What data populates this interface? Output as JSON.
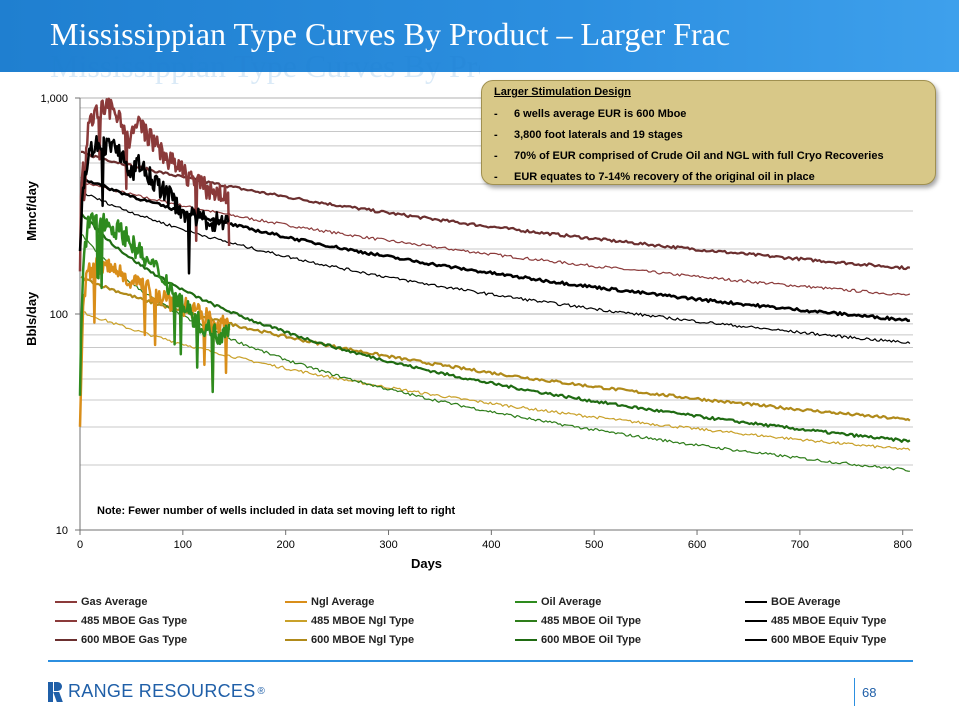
{
  "slide": {
    "title": "Mississippian Type Curves By Product – Larger Frac",
    "company": "RANGE RESOURCES",
    "company_mark": "®",
    "page_number": "68",
    "accent_color": "#2c8fe0"
  },
  "callout": {
    "title": "Larger Stimulation Design",
    "bullet_marker": "-",
    "items": [
      "6 wells average EUR is 600 Mboe",
      "3,800 foot laterals and 19 stages",
      "70% of EUR comprised of Crude Oil and NGL with full Cryo Recoveries",
      "EUR equates to 7-14% recovery of the original oil in place"
    ]
  },
  "chart_data": {
    "type": "line",
    "title": "",
    "xlabel": "Days",
    "ylabel_top": "Mmcf/day",
    "ylabel_bottom": "Bbls/day",
    "xlim": [
      0,
      810
    ],
    "ylim": [
      10,
      1000
    ],
    "yscale": "log",
    "x_ticks": [
      "0",
      "100",
      "200",
      "300",
      "400",
      "500",
      "600",
      "700",
      "800"
    ],
    "y_ticks": [
      "10",
      "100",
      "1,000"
    ],
    "note": "Note: Fewer number of wells included in data set moving left to right",
    "series": [
      {
        "name": "Gas Average",
        "color": "#8b3a3a",
        "width": 2.5,
        "kind": "noisy",
        "days": 145,
        "x": [
          0,
          3,
          8,
          12,
          20,
          30,
          40,
          48,
          55,
          62,
          70,
          80,
          90,
          100,
          110,
          120,
          130,
          145
        ],
        "y": [
          300,
          550,
          700,
          820,
          880,
          900,
          820,
          600,
          780,
          720,
          640,
          560,
          500,
          460,
          420,
          390,
          370,
          350
        ]
      },
      {
        "name": "485 MBOE Gas Type",
        "color": "#8b3a3a",
        "width": 1.2,
        "kind": "type",
        "qi": 410,
        "di": 0.00292,
        "b": 1.0
      },
      {
        "name": "600 MBOE Gas Type",
        "color": "#6b2f2f",
        "width": 2.2,
        "kind": "type",
        "qi": 560,
        "di": 0.00302,
        "b": 1.0
      },
      {
        "name": "Ngl Average",
        "color": "#d98e1a",
        "width": 2.5,
        "kind": "noisy",
        "days": 145,
        "x": [
          0,
          3,
          8,
          15,
          25,
          35,
          45,
          55,
          65,
          75,
          85,
          95,
          105,
          115,
          125,
          135,
          145
        ],
        "y": [
          30,
          120,
          155,
          170,
          165,
          160,
          150,
          140,
          130,
          125,
          118,
          112,
          108,
          100,
          95,
          90,
          88
        ]
      },
      {
        "name": "485 MBOE Ngl Type",
        "color": "#c9a12a",
        "width": 1.2,
        "kind": "type",
        "qi": 103,
        "di": 0.00418,
        "b": 1.0
      },
      {
        "name": "600 MBOE Ngl Type",
        "color": "#b08a1a",
        "width": 2.2,
        "kind": "type",
        "qi": 148,
        "di": 0.00442,
        "b": 1.0
      },
      {
        "name": "Oil Average",
        "color": "#2e8b1e",
        "width": 2.5,
        "kind": "noisy",
        "days": 145,
        "x": [
          0,
          3,
          8,
          15,
          25,
          35,
          45,
          55,
          65,
          75,
          85,
          95,
          105,
          115,
          125,
          135,
          145
        ],
        "y": [
          45,
          170,
          260,
          275,
          265,
          250,
          230,
          200,
          175,
          160,
          140,
          120,
          105,
          92,
          85,
          80,
          90
        ]
      },
      {
        "name": "485 MBOE Oil Type",
        "color": "#2e7d1a",
        "width": 1.2,
        "kind": "type",
        "qi": 240,
        "di": 0.0145,
        "b": 1.0
      },
      {
        "name": "600 MBOE Oil Type",
        "color": "#1f6b12",
        "width": 2.2,
        "kind": "type",
        "qi": 300,
        "di": 0.0132,
        "b": 1.0
      },
      {
        "name": "BOE Average",
        "color": "#000000",
        "width": 2.5,
        "kind": "noisy",
        "days": 145,
        "x": [
          0,
          3,
          8,
          12,
          20,
          30,
          40,
          48,
          55,
          62,
          70,
          80,
          90,
          100,
          110,
          120,
          130,
          145
        ],
        "y": [
          200,
          400,
          520,
          600,
          620,
          600,
          560,
          420,
          500,
          470,
          420,
          380,
          340,
          300,
          280,
          275,
          270,
          265
        ]
      },
      {
        "name": "485 MBOE Equiv Type",
        "color": "#000000",
        "width": 1.2,
        "kind": "type",
        "qi": 370,
        "di": 0.005,
        "b": 1.0
      },
      {
        "name": "600  MBOE Equiv Type",
        "color": "#000000",
        "width": 2.6,
        "kind": "type",
        "qi": 430,
        "di": 0.00445,
        "b": 1.0
      }
    ]
  }
}
